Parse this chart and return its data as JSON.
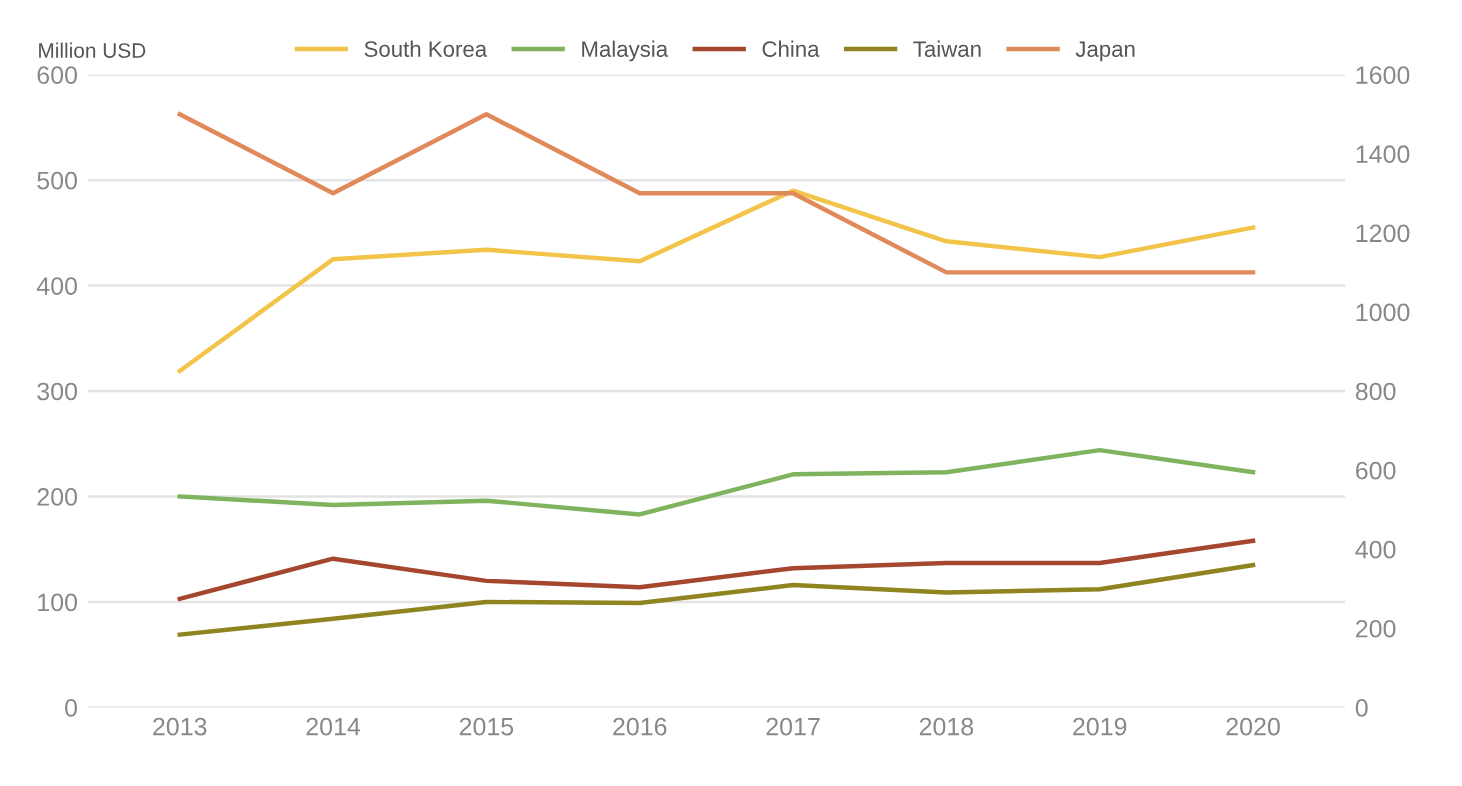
{
  "chart_data": {
    "type": "line",
    "ylabel": "Million USD",
    "categories": [
      "2013",
      "2014",
      "2015",
      "2016",
      "2017",
      "2018",
      "2019",
      "2020"
    ],
    "series": [
      {
        "name": "South Korea",
        "color": "#f2c44a",
        "values": [
          319,
          425,
          434,
          423,
          490,
          442,
          427,
          455
        ]
      },
      {
        "name": "Malaysia",
        "color": "#80b35e",
        "values": [
          200,
          192,
          196,
          183,
          221,
          223,
          244,
          223
        ]
      },
      {
        "name": "China",
        "color": "#a4472e",
        "values": [
          103,
          141,
          120,
          114,
          132,
          137,
          137,
          158
        ]
      },
      {
        "name": "Taiwan",
        "color": "#8f8420",
        "values": [
          69,
          84,
          100,
          99,
          116,
          109,
          112,
          135
        ]
      },
      {
        "name": "Japan",
        "color": "#e08a5c",
        "axis": "y2",
        "values": [
          1500,
          1300,
          1500,
          1300,
          1300,
          1100,
          1100,
          1100
        ]
      }
    ],
    "ylim": [
      0,
      600
    ],
    "yticks": [
      0,
      100,
      200,
      300,
      400,
      500,
      600
    ],
    "y2lim": [
      0,
      1600
    ],
    "y2ticks": [
      0,
      200,
      400,
      600,
      800,
      1000,
      1200,
      1400,
      1600
    ],
    "grid": "y",
    "legend": "top",
    "marker": "none",
    "line_style": "solid"
  }
}
